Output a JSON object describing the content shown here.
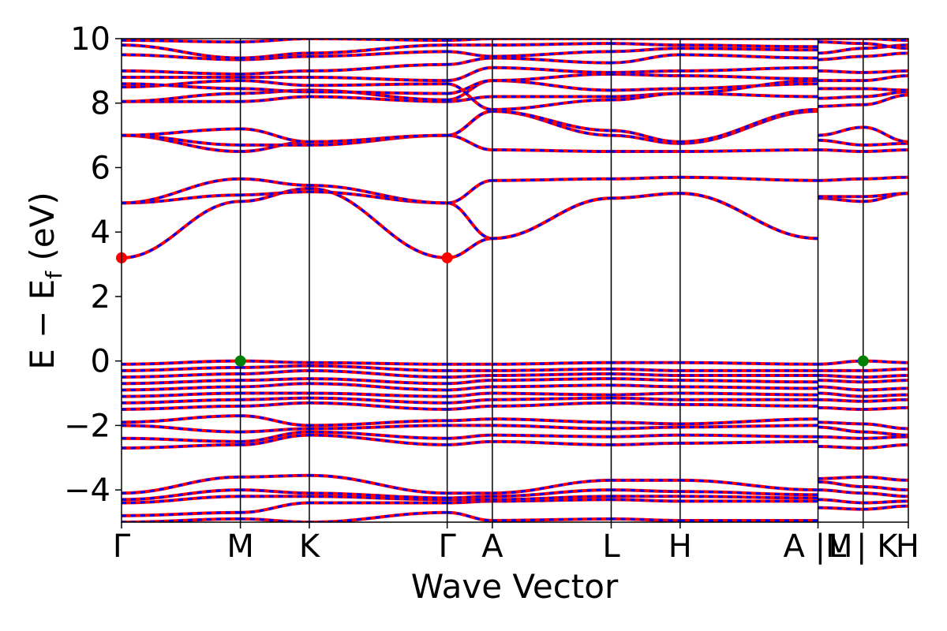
{
  "chart_data": {
    "type": "line",
    "xlabel": "Wave Vector",
    "ylabel": "E − E",
    "ylabel_sub": "f",
    "ylabel_unit": " (eV)",
    "ylim": [
      -5,
      10
    ],
    "yticks": [
      -4,
      -2,
      0,
      2,
      4,
      6,
      8,
      10
    ],
    "ytick_labels": [
      "−4",
      "−2",
      "0",
      "2",
      "4",
      "6",
      "8",
      "10"
    ],
    "kpoints": [
      {
        "label": "Γ",
        "x": 0.0
      },
      {
        "label": "M",
        "x": 1.0
      },
      {
        "label": "K",
        "x": 1.58
      },
      {
        "label": "Γ",
        "x": 2.74
      },
      {
        "label": "A",
        "x": 3.12
      },
      {
        "label": "L",
        "x": 4.12
      },
      {
        "label": "H",
        "x": 4.7
      },
      {
        "label": "A |M",
        "x": 5.86
      },
      {
        "label": "L | K",
        "x": 6.24
      },
      {
        "label": "H",
        "x": 6.62
      }
    ],
    "vertical_lines_x": [
      1.0,
      1.58,
      2.74,
      3.12,
      4.12,
      4.7,
      5.86,
      6.24
    ],
    "xlim": [
      0,
      6.62
    ],
    "grid": false,
    "legend": "none",
    "line_style": "red solid overlaid with blue dashed (spin up/down)",
    "colors": {
      "up": "#ff0000",
      "down": "#0000ff",
      "cbm": "#ff0000",
      "vbm": "#008000"
    },
    "cbm_points": [
      {
        "x": 0.0,
        "y": 3.2
      },
      {
        "x": 2.74,
        "y": 3.2
      }
    ],
    "vbm_points": [
      {
        "x": 1.0,
        "y": 0.0
      },
      {
        "x": 6.24,
        "y": 0.0
      }
    ],
    "segments": [
      {
        "x": [
          0.0,
          1.0
        ],
        "bands": [
          [
            -5.0,
            -4.9
          ],
          [
            -4.8,
            -4.7
          ],
          [
            -4.4,
            -4.2
          ],
          [
            -4.3,
            -4.0
          ],
          [
            -4.1,
            -3.6
          ],
          [
            -2.7,
            -2.6
          ],
          [
            -2.4,
            -2.5
          ],
          [
            -2.0,
            -2.2
          ],
          [
            -1.9,
            -1.7
          ],
          [
            -1.5,
            -1.4
          ],
          [
            -1.3,
            -1.2
          ],
          [
            -1.1,
            -1.0
          ],
          [
            -0.9,
            -0.8
          ],
          [
            -0.7,
            -0.6
          ],
          [
            -0.5,
            -0.4
          ],
          [
            -0.3,
            -0.2
          ],
          [
            -0.1,
            0.0
          ],
          [
            3.2,
            4.95
          ],
          [
            4.9,
            5.15
          ],
          [
            4.9,
            5.65
          ],
          [
            7.0,
            6.5
          ],
          [
            7.0,
            6.7
          ],
          [
            7.0,
            7.2
          ],
          [
            8.05,
            8.05
          ],
          [
            8.05,
            8.3
          ],
          [
            8.5,
            8.7
          ],
          [
            8.6,
            8.45
          ],
          [
            8.8,
            8.8
          ],
          [
            9.0,
            8.9
          ],
          [
            9.5,
            9.35
          ],
          [
            9.8,
            9.4
          ],
          [
            9.95,
            9.9
          ]
        ]
      },
      {
        "x": [
          1.0,
          1.58
        ],
        "bands": [
          [
            -4.9,
            -5.0
          ],
          [
            -4.7,
            -4.4
          ],
          [
            -4.2,
            -4.2
          ],
          [
            -4.0,
            -4.1
          ],
          [
            -3.6,
            -3.55
          ],
          [
            -2.6,
            -2.3
          ],
          [
            -2.5,
            -2.2
          ],
          [
            -2.2,
            -2.1
          ],
          [
            -1.7,
            -2.0
          ],
          [
            -1.4,
            -1.3
          ],
          [
            -1.2,
            -1.15
          ],
          [
            -1.0,
            -1.0
          ],
          [
            -0.8,
            -0.7
          ],
          [
            -0.6,
            -0.55
          ],
          [
            -0.4,
            -0.3
          ],
          [
            -0.2,
            -0.15
          ],
          [
            0.0,
            -0.05
          ],
          [
            4.95,
            5.35
          ],
          [
            5.15,
            5.25
          ],
          [
            5.65,
            5.45
          ],
          [
            6.5,
            6.8
          ],
          [
            6.7,
            6.7
          ],
          [
            7.2,
            6.8
          ],
          [
            8.05,
            8.2
          ],
          [
            8.3,
            8.4
          ],
          [
            8.7,
            8.55
          ],
          [
            8.45,
            8.35
          ],
          [
            8.8,
            8.8
          ],
          [
            8.9,
            9.0
          ],
          [
            9.35,
            9.45
          ],
          [
            9.4,
            9.55
          ],
          [
            9.9,
            10.0
          ]
        ]
      },
      {
        "x": [
          1.58,
          2.74
        ],
        "bands": [
          [
            -5.0,
            -4.7
          ],
          [
            -4.4,
            -4.4
          ],
          [
            -4.2,
            -4.3
          ],
          [
            -4.1,
            -4.25
          ],
          [
            -3.55,
            -4.1
          ],
          [
            -2.3,
            -2.6
          ],
          [
            -2.2,
            -2.4
          ],
          [
            -2.1,
            -2.0
          ],
          [
            -2.0,
            -1.85
          ],
          [
            -1.3,
            -1.5
          ],
          [
            -1.15,
            -1.3
          ],
          [
            -1.0,
            -1.1
          ],
          [
            -0.7,
            -0.9
          ],
          [
            -0.55,
            -0.7
          ],
          [
            -0.3,
            -0.5
          ],
          [
            -0.15,
            -0.3
          ],
          [
            -0.05,
            -0.1
          ],
          [
            5.35,
            3.2
          ],
          [
            5.25,
            4.9
          ],
          [
            5.45,
            4.9
          ],
          [
            6.8,
            7.0
          ],
          [
            6.7,
            7.0
          ],
          [
            6.8,
            7.0
          ],
          [
            8.2,
            8.05
          ],
          [
            8.4,
            8.1
          ],
          [
            8.55,
            8.6
          ],
          [
            8.35,
            8.3
          ],
          [
            8.8,
            8.7
          ],
          [
            9.0,
            9.2
          ],
          [
            9.45,
            9.6
          ],
          [
            9.55,
            9.8
          ],
          [
            10.0,
            9.95
          ]
        ]
      },
      {
        "x": [
          2.74,
          3.12
        ],
        "bands": [
          [
            -4.7,
            -4.95
          ],
          [
            -4.4,
            -4.35
          ],
          [
            -4.3,
            -4.3
          ],
          [
            -4.25,
            -4.2
          ],
          [
            -4.1,
            -4.1
          ],
          [
            -2.6,
            -2.5
          ],
          [
            -2.4,
            -2.3
          ],
          [
            -2.0,
            -2.0
          ],
          [
            -1.85,
            -1.8
          ],
          [
            -1.5,
            -1.4
          ],
          [
            -1.3,
            -1.2
          ],
          [
            -1.1,
            -1.0
          ],
          [
            -0.9,
            -0.8
          ],
          [
            -0.7,
            -0.6
          ],
          [
            -0.5,
            -0.45
          ],
          [
            -0.3,
            -0.3
          ],
          [
            -0.1,
            -0.1
          ],
          [
            3.2,
            3.8
          ],
          [
            4.9,
            3.8
          ],
          [
            4.9,
            5.6
          ],
          [
            7.0,
            6.55
          ],
          [
            7.0,
            7.75
          ],
          [
            7.0,
            7.75
          ],
          [
            8.05,
            8.2
          ],
          [
            8.1,
            8.7
          ],
          [
            8.6,
            7.8
          ],
          [
            8.3,
            8.7
          ],
          [
            8.7,
            9.1
          ],
          [
            9.2,
            9.4
          ],
          [
            9.6,
            9.45
          ],
          [
            9.8,
            9.8
          ],
          [
            9.95,
            10.0
          ]
        ]
      },
      {
        "x": [
          3.12,
          4.12
        ],
        "bands": [
          [
            -4.95,
            -4.9
          ],
          [
            -4.35,
            -4.3
          ],
          [
            -4.3,
            -4.2
          ],
          [
            -4.2,
            -4.0
          ],
          [
            -4.1,
            -3.7
          ],
          [
            -2.5,
            -2.6
          ],
          [
            -2.3,
            -2.35
          ],
          [
            -2.0,
            -2.1
          ],
          [
            -1.8,
            -1.9
          ],
          [
            -1.4,
            -1.3
          ],
          [
            -1.2,
            -1.15
          ],
          [
            -1.0,
            -1.05
          ],
          [
            -0.8,
            -0.75
          ],
          [
            -0.6,
            -0.55
          ],
          [
            -0.45,
            -0.4
          ],
          [
            -0.3,
            -0.25
          ],
          [
            -0.1,
            -0.05
          ],
          [
            3.8,
            5.05
          ],
          [
            3.8,
            5.05
          ],
          [
            5.6,
            5.65
          ],
          [
            6.55,
            6.5
          ],
          [
            7.75,
            7.0
          ],
          [
            7.75,
            7.15
          ],
          [
            8.2,
            8.2
          ],
          [
            8.7,
            8.4
          ],
          [
            7.8,
            8.1
          ],
          [
            8.7,
            8.9
          ],
          [
            9.1,
            8.95
          ],
          [
            9.4,
            9.25
          ],
          [
            9.45,
            9.6
          ],
          [
            9.8,
            9.85
          ],
          [
            10.0,
            10.0
          ]
        ]
      },
      {
        "x": [
          4.12,
          4.7
        ],
        "bands": [
          [
            -4.9,
            -4.95
          ],
          [
            -4.3,
            -4.35
          ],
          [
            -4.2,
            -4.2
          ],
          [
            -4.0,
            -4.05
          ],
          [
            -3.7,
            -3.7
          ],
          [
            -2.6,
            -2.55
          ],
          [
            -2.35,
            -2.3
          ],
          [
            -2.1,
            -2.05
          ],
          [
            -1.9,
            -1.95
          ],
          [
            -1.3,
            -1.35
          ],
          [
            -1.15,
            -1.2
          ],
          [
            -1.05,
            -1.0
          ],
          [
            -0.75,
            -0.8
          ],
          [
            -0.55,
            -0.6
          ],
          [
            -0.4,
            -0.45
          ],
          [
            -0.25,
            -0.3
          ],
          [
            -0.05,
            -0.05
          ],
          [
            5.05,
            5.2
          ],
          [
            5.05,
            5.2
          ],
          [
            5.65,
            5.7
          ],
          [
            6.5,
            6.5
          ],
          [
            7.0,
            6.75
          ],
          [
            7.15,
            6.8
          ],
          [
            8.2,
            8.3
          ],
          [
            8.4,
            8.45
          ],
          [
            8.1,
            8.3
          ],
          [
            8.9,
            8.85
          ],
          [
            8.95,
            9.0
          ],
          [
            9.25,
            9.5
          ],
          [
            9.6,
            9.7
          ],
          [
            9.85,
            9.8
          ],
          [
            10.0,
            10.0
          ]
        ]
      },
      {
        "x": [
          4.7,
          5.86
        ],
        "bands": [
          [
            -4.95,
            -4.95
          ],
          [
            -4.35,
            -4.35
          ],
          [
            -4.2,
            -4.25
          ],
          [
            -4.05,
            -4.15
          ],
          [
            -3.7,
            -4.0
          ],
          [
            -2.55,
            -2.5
          ],
          [
            -2.3,
            -2.35
          ],
          [
            -2.05,
            -2.0
          ],
          [
            -1.95,
            -1.8
          ],
          [
            -1.35,
            -1.4
          ],
          [
            -1.2,
            -1.2
          ],
          [
            -1.0,
            -1.05
          ],
          [
            -0.8,
            -0.85
          ],
          [
            -0.6,
            -0.65
          ],
          [
            -0.45,
            -0.45
          ],
          [
            -0.3,
            -0.3
          ],
          [
            -0.05,
            -0.1
          ],
          [
            5.2,
            3.8
          ],
          [
            5.2,
            3.8
          ],
          [
            5.7,
            5.6
          ],
          [
            6.5,
            6.55
          ],
          [
            6.75,
            7.75
          ],
          [
            6.8,
            7.8
          ],
          [
            8.3,
            8.2
          ],
          [
            8.45,
            8.6
          ],
          [
            8.3,
            8.7
          ],
          [
            8.85,
            8.75
          ],
          [
            9.0,
            9.1
          ],
          [
            9.5,
            9.4
          ],
          [
            9.7,
            9.65
          ],
          [
            9.8,
            9.75
          ],
          [
            10.0,
            10.0
          ]
        ]
      },
      {
        "x": [
          5.86,
          6.24
        ],
        "bands": [
          [
            -4.55,
            -4.6
          ],
          [
            -4.3,
            -4.4
          ],
          [
            -4.0,
            -4.1
          ],
          [
            -3.75,
            -3.9
          ],
          [
            -3.65,
            -3.6
          ],
          [
            -2.65,
            -2.7
          ],
          [
            -2.35,
            -2.4
          ],
          [
            -2.05,
            -2.2
          ],
          [
            -1.9,
            -1.95
          ],
          [
            -1.45,
            -1.5
          ],
          [
            -1.2,
            -1.25
          ],
          [
            -1.0,
            -1.1
          ],
          [
            -0.8,
            -0.9
          ],
          [
            -0.6,
            -0.65
          ],
          [
            -0.45,
            -0.5
          ],
          [
            -0.3,
            -0.3
          ],
          [
            -0.1,
            0.0
          ],
          [
            5.05,
            4.95
          ],
          [
            5.1,
            5.1
          ],
          [
            5.6,
            5.65
          ],
          [
            6.55,
            6.5
          ],
          [
            6.85,
            6.7
          ],
          [
            7.0,
            7.25
          ],
          [
            7.9,
            7.95
          ],
          [
            8.15,
            8.2
          ],
          [
            8.45,
            8.45
          ],
          [
            8.7,
            8.7
          ],
          [
            9.0,
            8.95
          ],
          [
            9.35,
            9.45
          ],
          [
            9.55,
            9.7
          ],
          [
            9.9,
            9.85
          ],
          [
            10.0,
            10.0
          ]
        ]
      },
      {
        "x": [
          6.24,
          6.62
        ],
        "bands": [
          [
            -4.6,
            -4.5
          ],
          [
            -4.4,
            -4.35
          ],
          [
            -4.1,
            -4.2
          ],
          [
            -3.9,
            -4.0
          ],
          [
            -3.6,
            -3.7
          ],
          [
            -2.7,
            -2.6
          ],
          [
            -2.4,
            -2.35
          ],
          [
            -2.2,
            -2.3
          ],
          [
            -1.95,
            -2.1
          ],
          [
            -1.5,
            -1.45
          ],
          [
            -1.25,
            -1.2
          ],
          [
            -1.1,
            -1.05
          ],
          [
            -0.9,
            -0.85
          ],
          [
            -0.65,
            -0.6
          ],
          [
            -0.5,
            -0.45
          ],
          [
            -0.3,
            -0.25
          ],
          [
            0.0,
            -0.05
          ],
          [
            4.95,
            5.2
          ],
          [
            5.1,
            5.2
          ],
          [
            5.65,
            5.7
          ],
          [
            6.5,
            6.55
          ],
          [
            6.7,
            6.75
          ],
          [
            7.25,
            6.8
          ],
          [
            7.95,
            8.25
          ],
          [
            8.2,
            8.35
          ],
          [
            8.45,
            8.4
          ],
          [
            8.7,
            8.85
          ],
          [
            8.95,
            9.0
          ],
          [
            9.45,
            9.55
          ],
          [
            9.7,
            9.8
          ],
          [
            9.85,
            9.7
          ],
          [
            10.0,
            9.95
          ]
        ]
      }
    ]
  }
}
